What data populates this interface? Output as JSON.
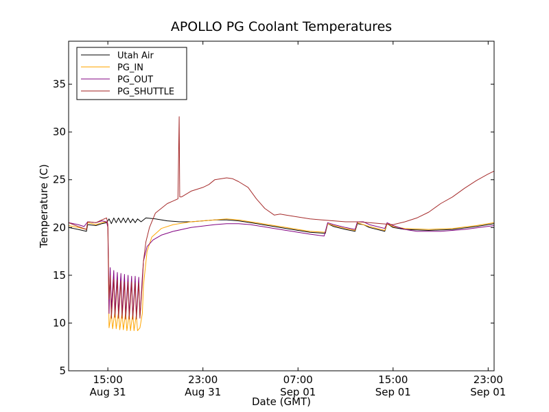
{
  "chart_data": {
    "type": "line",
    "title": "APOLLO PG Coolant Temperatures",
    "xlabel": "Date (GMT)",
    "ylabel": "Temperature (C)",
    "xlim": [
      11.7,
      47.5
    ],
    "ylim": [
      5,
      39.5
    ],
    "grid": false,
    "legend_position": "top-left",
    "yticks": [
      5,
      10,
      15,
      20,
      25,
      30,
      35
    ],
    "xticks": [
      {
        "x": 15,
        "time": "15:00",
        "date": "Aug 31"
      },
      {
        "x": 23,
        "time": "23:00",
        "date": "Aug 31"
      },
      {
        "x": 31,
        "time": "07:00",
        "date": "Sep 01"
      },
      {
        "x": 39,
        "time": "15:00",
        "date": "Sep 01"
      },
      {
        "x": 47,
        "time": "23:00",
        "date": "Sep 01"
      }
    ],
    "series": [
      {
        "name": "Utah Air",
        "color": "#000000",
        "points": [
          [
            11.7,
            20.0
          ],
          [
            12.5,
            19.8
          ],
          [
            13.2,
            19.6
          ],
          [
            13.3,
            20.3
          ],
          [
            14.0,
            20.2
          ],
          [
            14.5,
            20.4
          ],
          [
            14.9,
            20.5
          ],
          [
            15.1,
            20.9
          ],
          [
            15.3,
            20.4
          ],
          [
            15.5,
            21.0
          ],
          [
            15.7,
            20.5
          ],
          [
            15.9,
            21.0
          ],
          [
            16.1,
            20.5
          ],
          [
            16.3,
            21.0
          ],
          [
            16.5,
            20.5
          ],
          [
            16.7,
            21.0
          ],
          [
            16.9,
            20.5
          ],
          [
            17.1,
            20.9
          ],
          [
            17.3,
            20.5
          ],
          [
            17.5,
            20.9
          ],
          [
            17.8,
            20.6
          ],
          [
            18.2,
            21.0
          ],
          [
            19.0,
            20.9
          ],
          [
            20.0,
            20.7
          ],
          [
            21.0,
            20.6
          ],
          [
            22.0,
            20.6
          ],
          [
            23.0,
            20.7
          ],
          [
            24.0,
            20.8
          ],
          [
            25.0,
            20.8
          ],
          [
            26.0,
            20.7
          ],
          [
            27.0,
            20.5
          ],
          [
            28.0,
            20.3
          ],
          [
            29.0,
            20.1
          ],
          [
            30.0,
            19.9
          ],
          [
            31.0,
            19.7
          ],
          [
            32.0,
            19.5
          ],
          [
            33.3,
            19.4
          ],
          [
            33.5,
            20.4
          ],
          [
            34.0,
            20.1
          ],
          [
            35.0,
            19.8
          ],
          [
            35.8,
            19.6
          ],
          [
            36.0,
            20.4
          ],
          [
            36.5,
            20.3
          ],
          [
            37.0,
            20.0
          ],
          [
            38.3,
            19.6
          ],
          [
            38.5,
            20.4
          ],
          [
            39.0,
            20.0
          ],
          [
            40.0,
            19.8
          ],
          [
            42.0,
            19.7
          ],
          [
            44.0,
            19.8
          ],
          [
            46.0,
            20.1
          ],
          [
            47.5,
            20.4
          ]
        ]
      },
      {
        "name": "PG_IN",
        "color": "#ffa500",
        "points": [
          [
            11.7,
            20.2
          ],
          [
            12.5,
            20.0
          ],
          [
            13.2,
            19.8
          ],
          [
            13.3,
            20.5
          ],
          [
            14.0,
            20.3
          ],
          [
            14.5,
            20.5
          ],
          [
            14.9,
            20.6
          ],
          [
            15.0,
            20.0
          ],
          [
            15.1,
            9.5
          ],
          [
            15.3,
            11.0
          ],
          [
            15.4,
            9.4
          ],
          [
            15.6,
            11.2
          ],
          [
            15.7,
            9.4
          ],
          [
            15.9,
            11.2
          ],
          [
            16.0,
            9.3
          ],
          [
            16.2,
            11.1
          ],
          [
            16.3,
            9.3
          ],
          [
            16.5,
            11.1
          ],
          [
            16.6,
            9.2
          ],
          [
            16.8,
            11.0
          ],
          [
            16.9,
            9.2
          ],
          [
            17.1,
            11.0
          ],
          [
            17.2,
            9.2
          ],
          [
            17.4,
            10.9
          ],
          [
            17.5,
            9.2
          ],
          [
            17.7,
            9.5
          ],
          [
            17.9,
            11.0
          ],
          [
            18.0,
            14.0
          ],
          [
            18.3,
            17.5
          ],
          [
            18.7,
            19.0
          ],
          [
            19.5,
            19.9
          ],
          [
            20.5,
            20.3
          ],
          [
            22.0,
            20.6
          ],
          [
            23.0,
            20.7
          ],
          [
            24.0,
            20.8
          ],
          [
            25.0,
            20.9
          ],
          [
            26.0,
            20.8
          ],
          [
            27.0,
            20.6
          ],
          [
            28.0,
            20.4
          ],
          [
            29.0,
            20.2
          ],
          [
            30.0,
            20.0
          ],
          [
            31.0,
            19.8
          ],
          [
            32.0,
            19.6
          ],
          [
            33.3,
            19.5
          ],
          [
            33.5,
            20.4
          ],
          [
            34.0,
            20.2
          ],
          [
            35.0,
            19.9
          ],
          [
            35.8,
            19.7
          ],
          [
            36.0,
            20.5
          ],
          [
            37.0,
            20.1
          ],
          [
            38.3,
            19.7
          ],
          [
            38.5,
            20.4
          ],
          [
            39.0,
            20.1
          ],
          [
            40.0,
            19.9
          ],
          [
            42.0,
            19.8
          ],
          [
            44.0,
            19.9
          ],
          [
            46.0,
            20.2
          ],
          [
            47.5,
            20.5
          ]
        ]
      },
      {
        "name": "PG_OUT",
        "color": "#800080",
        "points": [
          [
            11.7,
            20.5
          ],
          [
            12.5,
            20.3
          ],
          [
            13.0,
            20.1
          ],
          [
            13.3,
            20.6
          ],
          [
            14.0,
            20.5
          ],
          [
            14.5,
            20.7
          ],
          [
            14.9,
            20.6
          ],
          [
            15.0,
            20.0
          ],
          [
            15.1,
            11.0
          ],
          [
            15.2,
            15.8
          ],
          [
            15.3,
            11.5
          ],
          [
            15.5,
            15.5
          ],
          [
            15.6,
            11.2
          ],
          [
            15.8,
            15.3
          ],
          [
            15.9,
            11.0
          ],
          [
            16.1,
            15.2
          ],
          [
            16.2,
            11.0
          ],
          [
            16.4,
            15.1
          ],
          [
            16.5,
            10.8
          ],
          [
            16.7,
            15.0
          ],
          [
            16.8,
            10.8
          ],
          [
            17.0,
            14.9
          ],
          [
            17.1,
            10.7
          ],
          [
            17.3,
            14.9
          ],
          [
            17.4,
            10.7
          ],
          [
            17.6,
            14.8
          ],
          [
            17.7,
            10.6
          ],
          [
            17.9,
            14.8
          ],
          [
            18.0,
            16.5
          ],
          [
            18.3,
            18.0
          ],
          [
            18.8,
            18.7
          ],
          [
            19.5,
            19.2
          ],
          [
            20.5,
            19.6
          ],
          [
            22.0,
            20.0
          ],
          [
            24.0,
            20.3
          ],
          [
            25.0,
            20.4
          ],
          [
            26.0,
            20.4
          ],
          [
            27.0,
            20.3
          ],
          [
            28.0,
            20.1
          ],
          [
            29.0,
            19.9
          ],
          [
            30.0,
            19.7
          ],
          [
            31.0,
            19.5
          ],
          [
            32.0,
            19.3
          ],
          [
            33.2,
            19.1
          ],
          [
            33.5,
            20.5
          ],
          [
            34.0,
            20.3
          ],
          [
            35.0,
            20.0
          ],
          [
            35.8,
            19.8
          ],
          [
            36.0,
            20.6
          ],
          [
            36.5,
            20.6
          ],
          [
            37.0,
            20.3
          ],
          [
            38.3,
            19.9
          ],
          [
            38.5,
            20.5
          ],
          [
            39.0,
            20.2
          ],
          [
            40.0,
            19.8
          ],
          [
            41.0,
            19.6
          ],
          [
            43.0,
            19.6
          ],
          [
            45.0,
            19.8
          ],
          [
            47.5,
            20.2
          ]
        ]
      },
      {
        "name": "PG_SHUTTLE",
        "color": "#a52a2a",
        "points": [
          [
            11.7,
            20.5
          ],
          [
            12.5,
            20.1
          ],
          [
            13.2,
            19.8
          ],
          [
            13.3,
            20.6
          ],
          [
            14.0,
            20.5
          ],
          [
            14.5,
            20.8
          ],
          [
            14.9,
            21.0
          ],
          [
            15.0,
            20.3
          ],
          [
            15.1,
            12.5
          ],
          [
            15.2,
            15.0
          ],
          [
            15.3,
            10.5
          ],
          [
            15.5,
            14.6
          ],
          [
            15.6,
            10.6
          ],
          [
            15.8,
            14.5
          ],
          [
            15.9,
            10.5
          ],
          [
            16.1,
            14.4
          ],
          [
            16.2,
            10.5
          ],
          [
            16.4,
            14.3
          ],
          [
            16.5,
            10.4
          ],
          [
            16.7,
            14.3
          ],
          [
            16.8,
            10.4
          ],
          [
            17.0,
            14.3
          ],
          [
            17.1,
            10.4
          ],
          [
            17.3,
            14.2
          ],
          [
            17.4,
            10.4
          ],
          [
            17.6,
            14.2
          ],
          [
            17.7,
            10.5
          ],
          [
            17.9,
            14.2
          ],
          [
            18.0,
            16.5
          ],
          [
            18.2,
            18.5
          ],
          [
            18.5,
            20.0
          ],
          [
            19.0,
            21.5
          ],
          [
            20.0,
            22.5
          ],
          [
            20.9,
            23.0
          ],
          [
            21.0,
            31.6
          ],
          [
            21.05,
            23.2
          ],
          [
            21.2,
            23.2
          ],
          [
            22.0,
            23.8
          ],
          [
            23.0,
            24.2
          ],
          [
            23.5,
            24.5
          ],
          [
            24.0,
            25.0
          ],
          [
            25.0,
            25.2
          ],
          [
            25.5,
            25.1
          ],
          [
            26.0,
            24.8
          ],
          [
            26.8,
            24.2
          ],
          [
            27.5,
            23.0
          ],
          [
            28.2,
            22.0
          ],
          [
            29.0,
            21.3
          ],
          [
            29.5,
            21.4
          ],
          [
            30.0,
            21.3
          ],
          [
            31.0,
            21.1
          ],
          [
            32.0,
            20.9
          ],
          [
            33.0,
            20.8
          ],
          [
            34.0,
            20.7
          ],
          [
            35.0,
            20.6
          ],
          [
            36.0,
            20.6
          ],
          [
            37.0,
            20.5
          ],
          [
            38.0,
            20.4
          ],
          [
            39.0,
            20.3
          ],
          [
            40.0,
            20.6
          ],
          [
            41.0,
            21.0
          ],
          [
            42.0,
            21.6
          ],
          [
            43.0,
            22.5
          ],
          [
            44.0,
            23.2
          ],
          [
            45.0,
            24.1
          ],
          [
            46.0,
            24.9
          ],
          [
            47.0,
            25.6
          ],
          [
            47.5,
            25.9
          ]
        ]
      }
    ]
  }
}
